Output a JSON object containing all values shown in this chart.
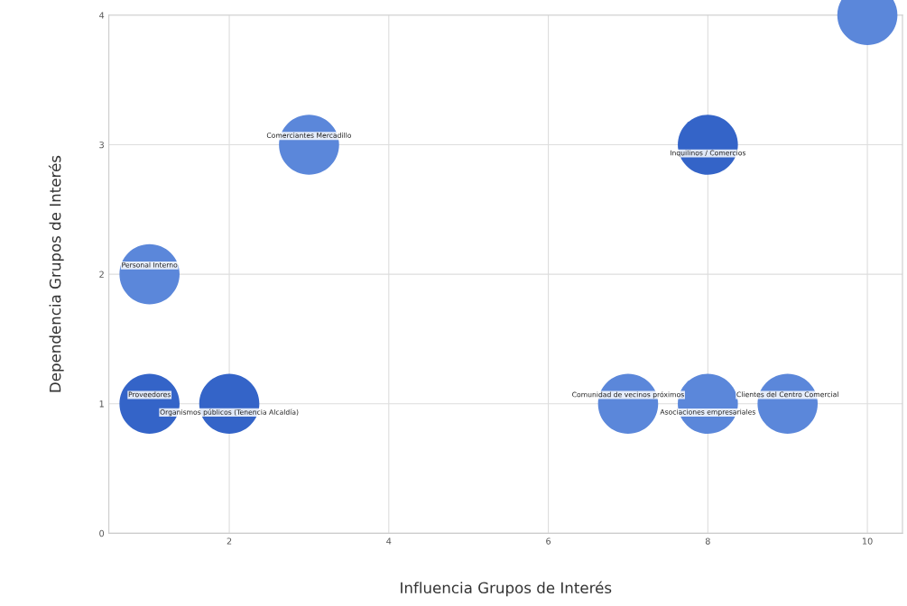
{
  "chart_data": {
    "type": "bubble",
    "xlabel": "Influencia Grupos de Interés",
    "ylabel": "Dependencia Grupos de Interés",
    "x": [
      1,
      3,
      8,
      10,
      1,
      2,
      7,
      8,
      9
    ],
    "values": [
      2,
      3,
      3,
      4,
      1,
      1,
      1,
      1,
      1
    ],
    "sizes": [
      1,
      1,
      1,
      1,
      1,
      1,
      1,
      1,
      1
    ],
    "colors": [
      "#5b87da",
      "#5b87da",
      "#3464c8",
      "#5b87da",
      "#3464c8",
      "#3464c8",
      "#5b87da",
      "#5b87da",
      "#5b87da"
    ],
    "value_labels": [
      "Personal Interno",
      "Comerciantes Mercadillo",
      "Inquilinos / Comercios",
      null,
      "Proveedores",
      "Organismos públicos (Tenencia Alcaldía)",
      "Comunidad de vecinos próximos",
      "Asociaciones empresariales",
      "Clientes del Centro Comercial"
    ],
    "xlim": [
      0.49,
      10.44
    ],
    "xticks": [
      2,
      4,
      6,
      8,
      10
    ],
    "ylim": [
      0,
      4
    ],
    "yticks": [
      0,
      1,
      2,
      3,
      4
    ],
    "grid": true
  }
}
